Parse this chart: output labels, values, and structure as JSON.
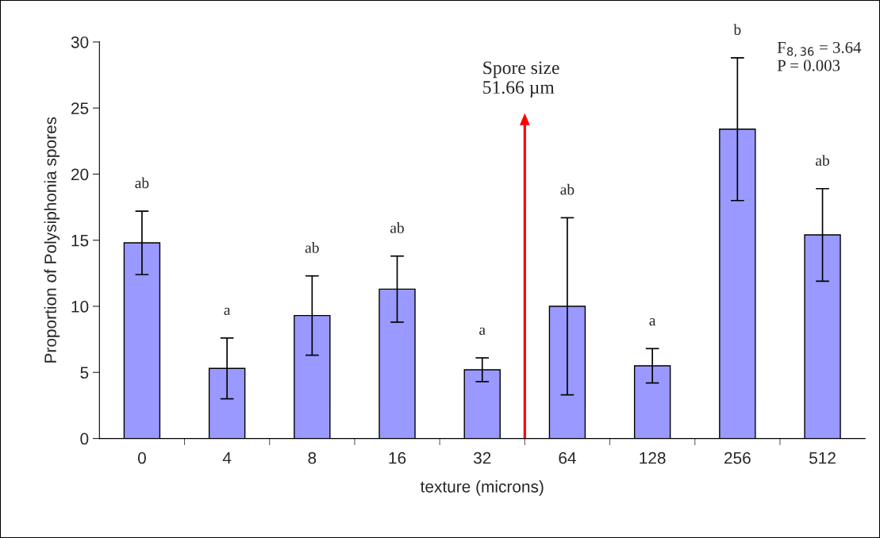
{
  "chart_data": {
    "type": "bar",
    "xlabel": "texture (microns)",
    "ylabel": "Proportion of Polysiphonia spores",
    "categories": [
      "0",
      "4",
      "8",
      "16",
      "32",
      "64",
      "128",
      "256",
      "512"
    ],
    "values": [
      14.8,
      5.3,
      9.3,
      11.3,
      5.2,
      10.0,
      5.5,
      23.4,
      15.4
    ],
    "errors": [
      2.4,
      2.3,
      3.0,
      2.5,
      0.9,
      6.7,
      1.3,
      5.4,
      3.5
    ],
    "color": "#9999ff",
    "ylim": [
      0,
      30
    ],
    "yticks": [
      0,
      5,
      10,
      15,
      20,
      25,
      30
    ],
    "grid": false,
    "annotations": [
      "ab",
      "a",
      "ab",
      "ab",
      "a",
      "ab",
      "a",
      "b",
      "ab",
      "Spore size\n51.66 µm",
      "F$_{8,36}$ = 3.64\nP = 0.003"
    ]
  }
}
